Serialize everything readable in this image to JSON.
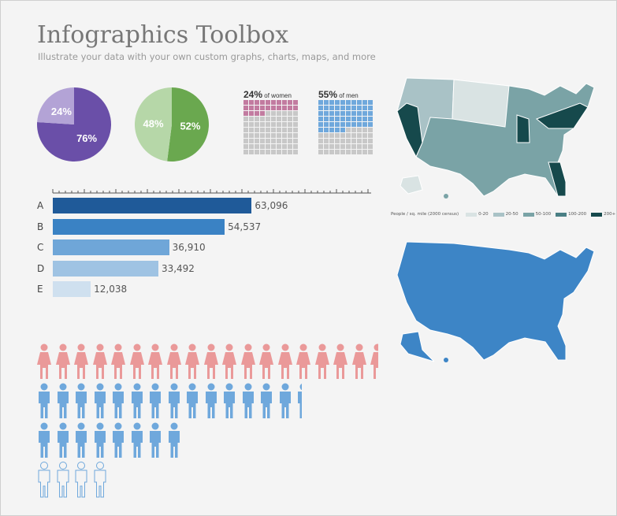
{
  "header": {
    "title": "Infographics Toolbox",
    "subtitle": "Illustrate your data with your own custom graphs, charts, maps, and more"
  },
  "pies": [
    {
      "values": [
        76,
        24
      ],
      "labels": [
        "76%",
        "24%"
      ],
      "colors": [
        "#6a4fa8",
        "#b3a3d6"
      ]
    },
    {
      "values": [
        52,
        48
      ],
      "labels": [
        "52%",
        "48%"
      ],
      "colors": [
        "#6aa84f",
        "#b6d7a8"
      ]
    }
  ],
  "waffles": [
    {
      "percent_label": "24%",
      "suffix": "of women",
      "value": 24,
      "color": "#c27ba0"
    },
    {
      "percent_label": "55%",
      "suffix": "of men",
      "value": 55,
      "color": "#6fa8dc"
    }
  ],
  "bar_chart": {
    "rows": [
      {
        "label": "A",
        "value": 63096,
        "display": "63,096",
        "color": "#1f5a99"
      },
      {
        "label": "B",
        "value": 54537,
        "display": "54,537",
        "color": "#3a82c4"
      },
      {
        "label": "C",
        "value": 36910,
        "display": "36,910",
        "color": "#6fa6d8"
      },
      {
        "label": "D",
        "value": 33492,
        "display": "33,492",
        "color": "#9fc3e3"
      },
      {
        "label": "E",
        "value": 12038,
        "display": "12,038",
        "color": "#cfe0ef"
      }
    ]
  },
  "pictograph": {
    "rows": [
      {
        "kind": "female",
        "count": 18.5,
        "color": "#ea9999"
      },
      {
        "kind": "male",
        "count": 14.4,
        "color": "#6fa8dc"
      },
      {
        "kind": "male",
        "count": 8,
        "color": "#6fa8dc"
      },
      {
        "kind": "male-outline",
        "count": 4,
        "color": "#6fa8dc"
      }
    ]
  },
  "map_legend": {
    "title": "People / sq. mile (2000 census)",
    "items": [
      {
        "label": "0-20",
        "color": "#d9e3e3"
      },
      {
        "label": "20-50",
        "color": "#a9c2c6"
      },
      {
        "label": "50-100",
        "color": "#7aa3a6"
      },
      {
        "label": "100-200",
        "color": "#4a7f84"
      },
      {
        "label": "200+",
        "color": "#16494c"
      }
    ]
  },
  "map2": {
    "color": "#3d85c6"
  }
}
